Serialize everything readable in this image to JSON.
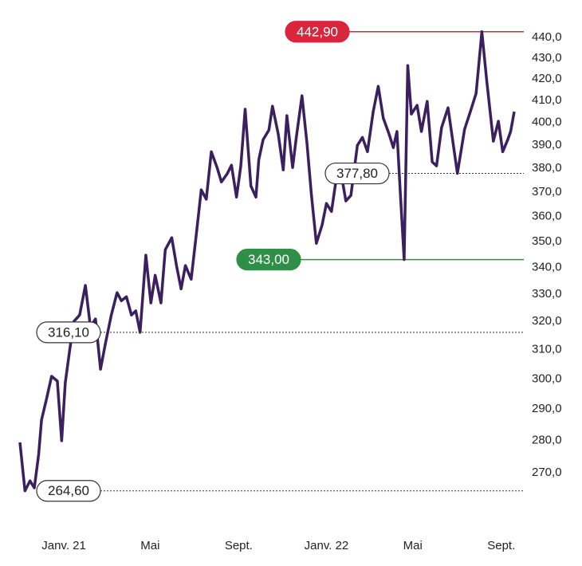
{
  "chart_data": {
    "type": "line",
    "log_scale": true,
    "x": [
      -61,
      -54,
      -47,
      -41,
      -35,
      -31,
      -24,
      -17,
      -9,
      -3,
      2,
      8,
      14,
      22,
      30,
      37,
      44,
      51,
      58,
      66,
      74,
      80,
      87,
      94,
      100,
      106,
      114,
      121,
      127,
      135,
      141,
      150,
      157,
      163,
      169,
      177,
      184,
      191,
      198,
      205,
      213,
      219,
      227,
      233,
      240,
      246,
      252,
      260,
      267,
      271,
      277,
      285,
      290,
      298,
      305,
      310,
      318,
      323,
      331,
      338,
      344,
      351,
      359,
      365,
      372,
      379,
      385,
      392,
      399,
      408,
      415,
      422,
      430,
      437,
      444,
      452,
      458,
      463,
      468,
      473,
      478,
      483,
      491,
      497,
      505,
      512,
      518,
      525,
      534,
      547,
      557,
      565,
      573,
      581,
      588,
      597,
      604,
      610,
      617,
      621,
      626
    ],
    "series": [
      {
        "color": "#3b1f5e",
        "values": [
          279.4,
          264.6,
          267.6,
          265.5,
          275.6,
          286.5,
          293.4,
          300.9,
          299.3,
          279.9,
          298.7,
          309.6,
          320.0,
          322.3,
          333.2,
          318.0,
          320.9,
          303.3,
          312.4,
          322.3,
          330.5,
          327.5,
          329.0,
          322.3,
          323.8,
          316.1,
          344.7,
          326.7,
          337.0,
          326.7,
          346.8,
          351.5,
          340.1,
          331.9,
          340.7,
          335.5,
          352.5,
          370.9,
          367.0,
          387.1,
          380.3,
          374.2,
          377.6,
          381.3,
          367.9,
          381.0,
          406.0,
          372.5,
          367.9,
          383.7,
          392.4,
          396.6,
          407.4,
          394.9,
          379.3,
          403.1,
          380.3,
          393.1,
          412.2,
          390.6,
          369.2,
          349.3,
          356.6,
          365.3,
          362.0,
          376.3,
          378.6,
          366.3,
          368.6,
          389.9,
          393.4,
          387.1,
          404.9,
          416.6,
          402.0,
          394.9,
          388.9,
          396.0,
          367.9,
          343.0,
          426.4,
          403.8,
          407.8,
          396.0,
          409.6,
          382.7,
          381.0,
          397.7,
          406.7,
          377.8,
          397.0,
          404.9,
          413.3,
          442.9,
          418.5,
          391.7,
          400.6,
          387.1,
          392.4,
          396.0,
          404.9
        ]
      }
    ],
    "xlim": [
      -61,
      626
    ],
    "xticks": [
      {
        "value": 0,
        "label": "Janv. 21"
      },
      {
        "value": 120,
        "label": "Mai"
      },
      {
        "value": 243,
        "label": "Sept."
      },
      {
        "value": 365,
        "label": "Janv. 22"
      },
      {
        "value": 485,
        "label": "Mai"
      },
      {
        "value": 608,
        "label": "Sept."
      }
    ],
    "ylim": [
      258,
      450
    ],
    "yticks": [
      {
        "value": 270,
        "label": "270,0"
      },
      {
        "value": 280,
        "label": "280,0"
      },
      {
        "value": 290,
        "label": "290,0"
      },
      {
        "value": 300,
        "label": "300,0"
      },
      {
        "value": 310,
        "label": "310,0"
      },
      {
        "value": 320,
        "label": "320,0"
      },
      {
        "value": 330,
        "label": "330,0"
      },
      {
        "value": 340,
        "label": "340,0"
      },
      {
        "value": 350,
        "label": "350,0"
      },
      {
        "value": 360,
        "label": "360,0"
      },
      {
        "value": 370,
        "label": "370,0"
      },
      {
        "value": 380,
        "label": "380,0"
      },
      {
        "value": 390,
        "label": "390,0"
      },
      {
        "value": 400,
        "label": "400,0"
      },
      {
        "value": 410,
        "label": "410,0"
      },
      {
        "value": 420,
        "label": "420,0"
      },
      {
        "value": 430,
        "label": "430,0"
      },
      {
        "value": 440,
        "label": "440,0"
      }
    ],
    "reference_lines": [
      {
        "value": 442.9,
        "label": "442,90",
        "color": "#d9263c"
      },
      {
        "value": 377.8,
        "label": "377,80",
        "color": "#ffffff"
      },
      {
        "value": 343.0,
        "label": "343,00",
        "color": "#2f8f46"
      },
      {
        "value": 316.1,
        "label": "316,10",
        "color": "#ffffff"
      },
      {
        "value": 264.6,
        "label": "264,60",
        "color": "#ffffff"
      }
    ]
  }
}
